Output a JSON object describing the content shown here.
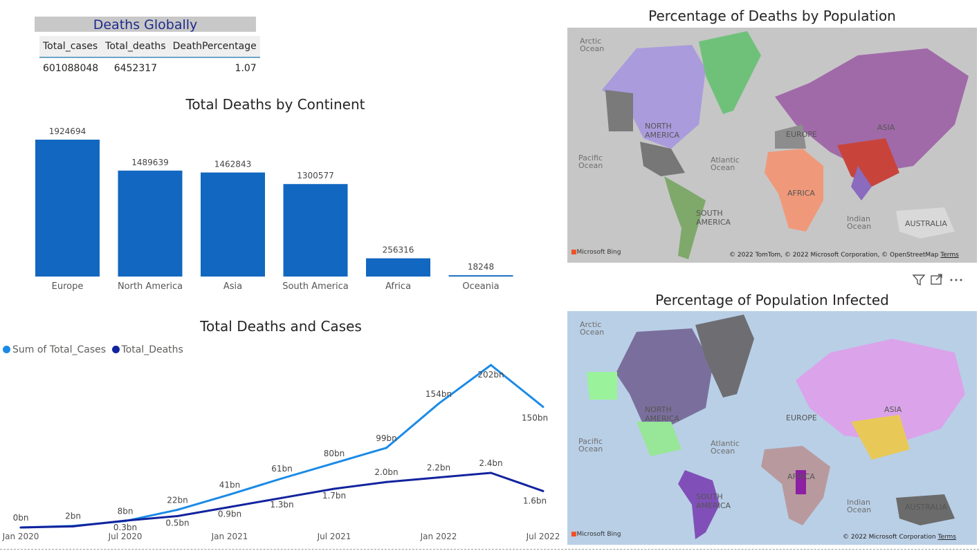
{
  "kpi": {
    "title": "Deaths Globally",
    "headers": [
      "Total_cases",
      "Total_deaths",
      "DeathPercentage"
    ],
    "row": [
      "601088048",
      "6452317",
      "1.07"
    ]
  },
  "maps": {
    "deaths": {
      "title": "Percentage of Deaths by Population",
      "credit": "© 2022 TomTom, © 2022 Microsoft Corporation, © OpenStreetMap",
      "terms": "Terms",
      "bing": "Microsoft Bing",
      "labels": {
        "arctic": "Arctic Ocean",
        "pacific": "Pacific Ocean",
        "atlantic": "Atlantic Ocean",
        "indian": "Indian Ocean",
        "na": "NORTH AMERICA",
        "sa": "SOUTH AMERICA",
        "europe": "EUROPE",
        "africa": "AFRICA",
        "asia": "ASIA",
        "australia": "AUSTRALIA"
      }
    },
    "infected": {
      "title": "Percentage of Population Infected",
      "credit": "© 2022 Microsoft Corporation",
      "terms": "Terms",
      "bing": "Microsoft Bing",
      "labels": {
        "arctic": "Arctic Ocean",
        "pacific": "Pacific Ocean",
        "atlantic": "Atlantic Ocean",
        "indian": "Indian Ocean",
        "na": "NORTH AMERICA",
        "sa": "SOUTH AMERICA",
        "europe": "EUROPE",
        "africa": "AFRICA",
        "asia": "ASIA",
        "australia": "AUSTRALIA"
      }
    }
  },
  "visual_toolbar": {
    "icons": [
      "filter-icon",
      "focus-mode-icon",
      "more-options-icon"
    ]
  },
  "chart_data": [
    {
      "type": "bar",
      "title": "Total Deaths by Continent",
      "categories": [
        "Europe",
        "North America",
        "Asia",
        "South America",
        "Africa",
        "Oceania"
      ],
      "values": [
        1924694,
        1489639,
        1462843,
        1300577,
        256316,
        18248
      ],
      "color": "#1267c0",
      "ylim": [
        0,
        1924694
      ]
    },
    {
      "type": "line",
      "title": "Total Deaths and Cases",
      "x": [
        "2020-01",
        "2020-04",
        "2020-07",
        "2020-10",
        "2021-01",
        "2021-04",
        "2021-07",
        "2021-10",
        "2022-01",
        "2022-04",
        "2022-07"
      ],
      "x_ticks": [
        "Jan 2020",
        "Jul 2020",
        "Jan 2021",
        "Jul 2021",
        "Jan 2022",
        "Jul 2022"
      ],
      "series": [
        {
          "name": "Sum of Total_Cases",
          "color": "#1a8ae6",
          "values": [
            0,
            2,
            8,
            22,
            41,
            61,
            80,
            99,
            154,
            202,
            150
          ],
          "labels": [
            "0bn",
            "2bn",
            "8bn",
            "22bn",
            "41bn",
            "61bn",
            "80bn",
            "99bn",
            "154bn",
            "202bn",
            "150bn"
          ]
        },
        {
          "name": "Total_Deaths",
          "color": "#12239e",
          "values": [
            0,
            0.05,
            0.3,
            0.5,
            0.9,
            1.3,
            1.7,
            2.0,
            2.2,
            2.4,
            1.6
          ],
          "labels": [
            "",
            "",
            "0.3bn",
            "0.5bn",
            "0.9bn",
            "1.3bn",
            "1.7bn",
            "2.0bn",
            "2.2bn",
            "2.4bn",
            "1.6bn"
          ]
        }
      ]
    }
  ]
}
